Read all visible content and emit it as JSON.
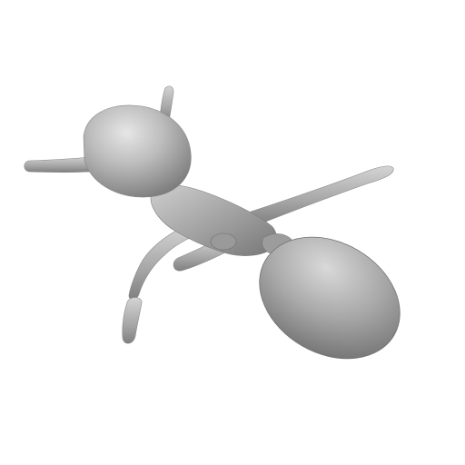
{
  "scene": {
    "subject": "ant-3d-mesh-render",
    "background_color": "#ffffff",
    "surface_color": "#a8a8a8",
    "highlight_color": "#dcdcdc",
    "shadow_color": "#6e6e6e"
  }
}
